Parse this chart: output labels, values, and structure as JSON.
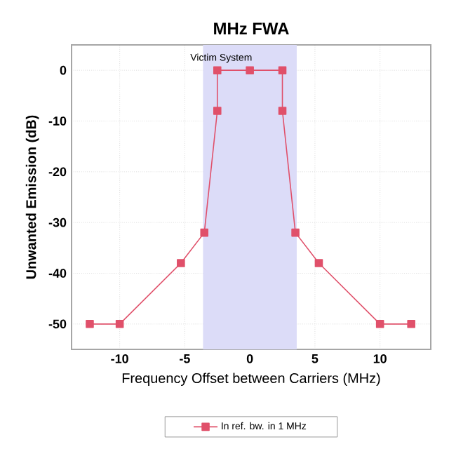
{
  "chart_data": {
    "type": "line",
    "title": "MHz FWA",
    "xlabel": "Frequency Offset between Carriers (MHz)",
    "ylabel": "Unwanted Emission (dB)",
    "series": [
      {
        "name": "In ref. bw.  in 1 MHz",
        "color": "#e0506a",
        "x": [
          -12.3,
          -10,
          -5.3,
          -3.5,
          -2.5,
          -2.5,
          0,
          2.5,
          2.5,
          3.5,
          5.3,
          10,
          12.4
        ],
        "values": [
          -50,
          -50,
          -38,
          -32,
          -8,
          0,
          0,
          0,
          -8,
          -32,
          -38,
          -50,
          -50
        ]
      }
    ],
    "bands": [
      {
        "axis": "x",
        "from": -3.6,
        "to": 3.6,
        "label": "Victim System",
        "color": "#dcdcf8"
      }
    ],
    "xlim": [
      -13.7,
      13.9
    ],
    "ylim": [
      -55,
      5
    ],
    "xticks": [
      -10,
      -5,
      0,
      5,
      10
    ],
    "yticks": [
      -50,
      -40,
      -30,
      -20,
      -10,
      0
    ],
    "grid": true,
    "legend": "bottom",
    "marker": "square",
    "line_style": "solid"
  }
}
